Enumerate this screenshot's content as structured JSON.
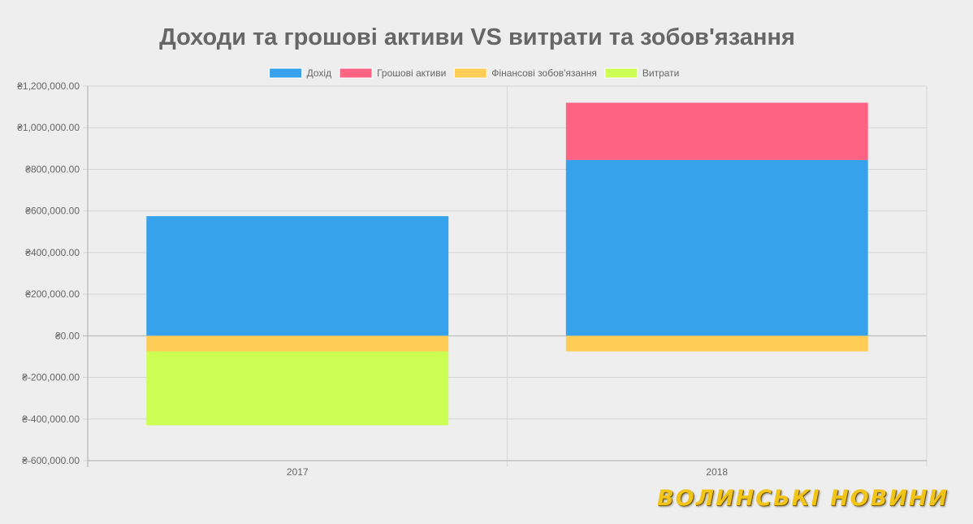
{
  "chart_data": {
    "type": "bar",
    "stacked": true,
    "title": "Доходи та грошові активи VS витрати та зобов'язання",
    "categories": [
      "2017",
      "2018"
    ],
    "series": [
      {
        "name": "Дохід",
        "color": "#36a2eb",
        "values": [
          575000,
          845000
        ]
      },
      {
        "name": "Грошові активи",
        "color": "#ff6384",
        "values": [
          0,
          275000
        ]
      },
      {
        "name": "Фінансові зобов'язання",
        "color": "#ffcd56",
        "values": [
          -75000,
          -75000
        ]
      },
      {
        "name": "Витрати",
        "color": "#cdfe54",
        "values": [
          -355000,
          0
        ]
      }
    ],
    "ylim": [
      -600000,
      1200000
    ],
    "yticks": [
      1200000,
      1000000,
      800000,
      600000,
      400000,
      200000,
      0,
      -200000,
      -400000,
      -600000
    ],
    "ytick_labels": [
      "₴1,200,000.00",
      "₴1,000,000.00",
      "₴800,000.00",
      "₴600,000.00",
      "₴400,000.00",
      "₴200,000.00",
      "₴0.00",
      "₴-200,000.00",
      "₴-400,000.00",
      "₴-600,000.00"
    ],
    "grid": true,
    "legend_position": "top"
  },
  "watermark": "ВОЛИНСЬКІ НОВИНИ"
}
